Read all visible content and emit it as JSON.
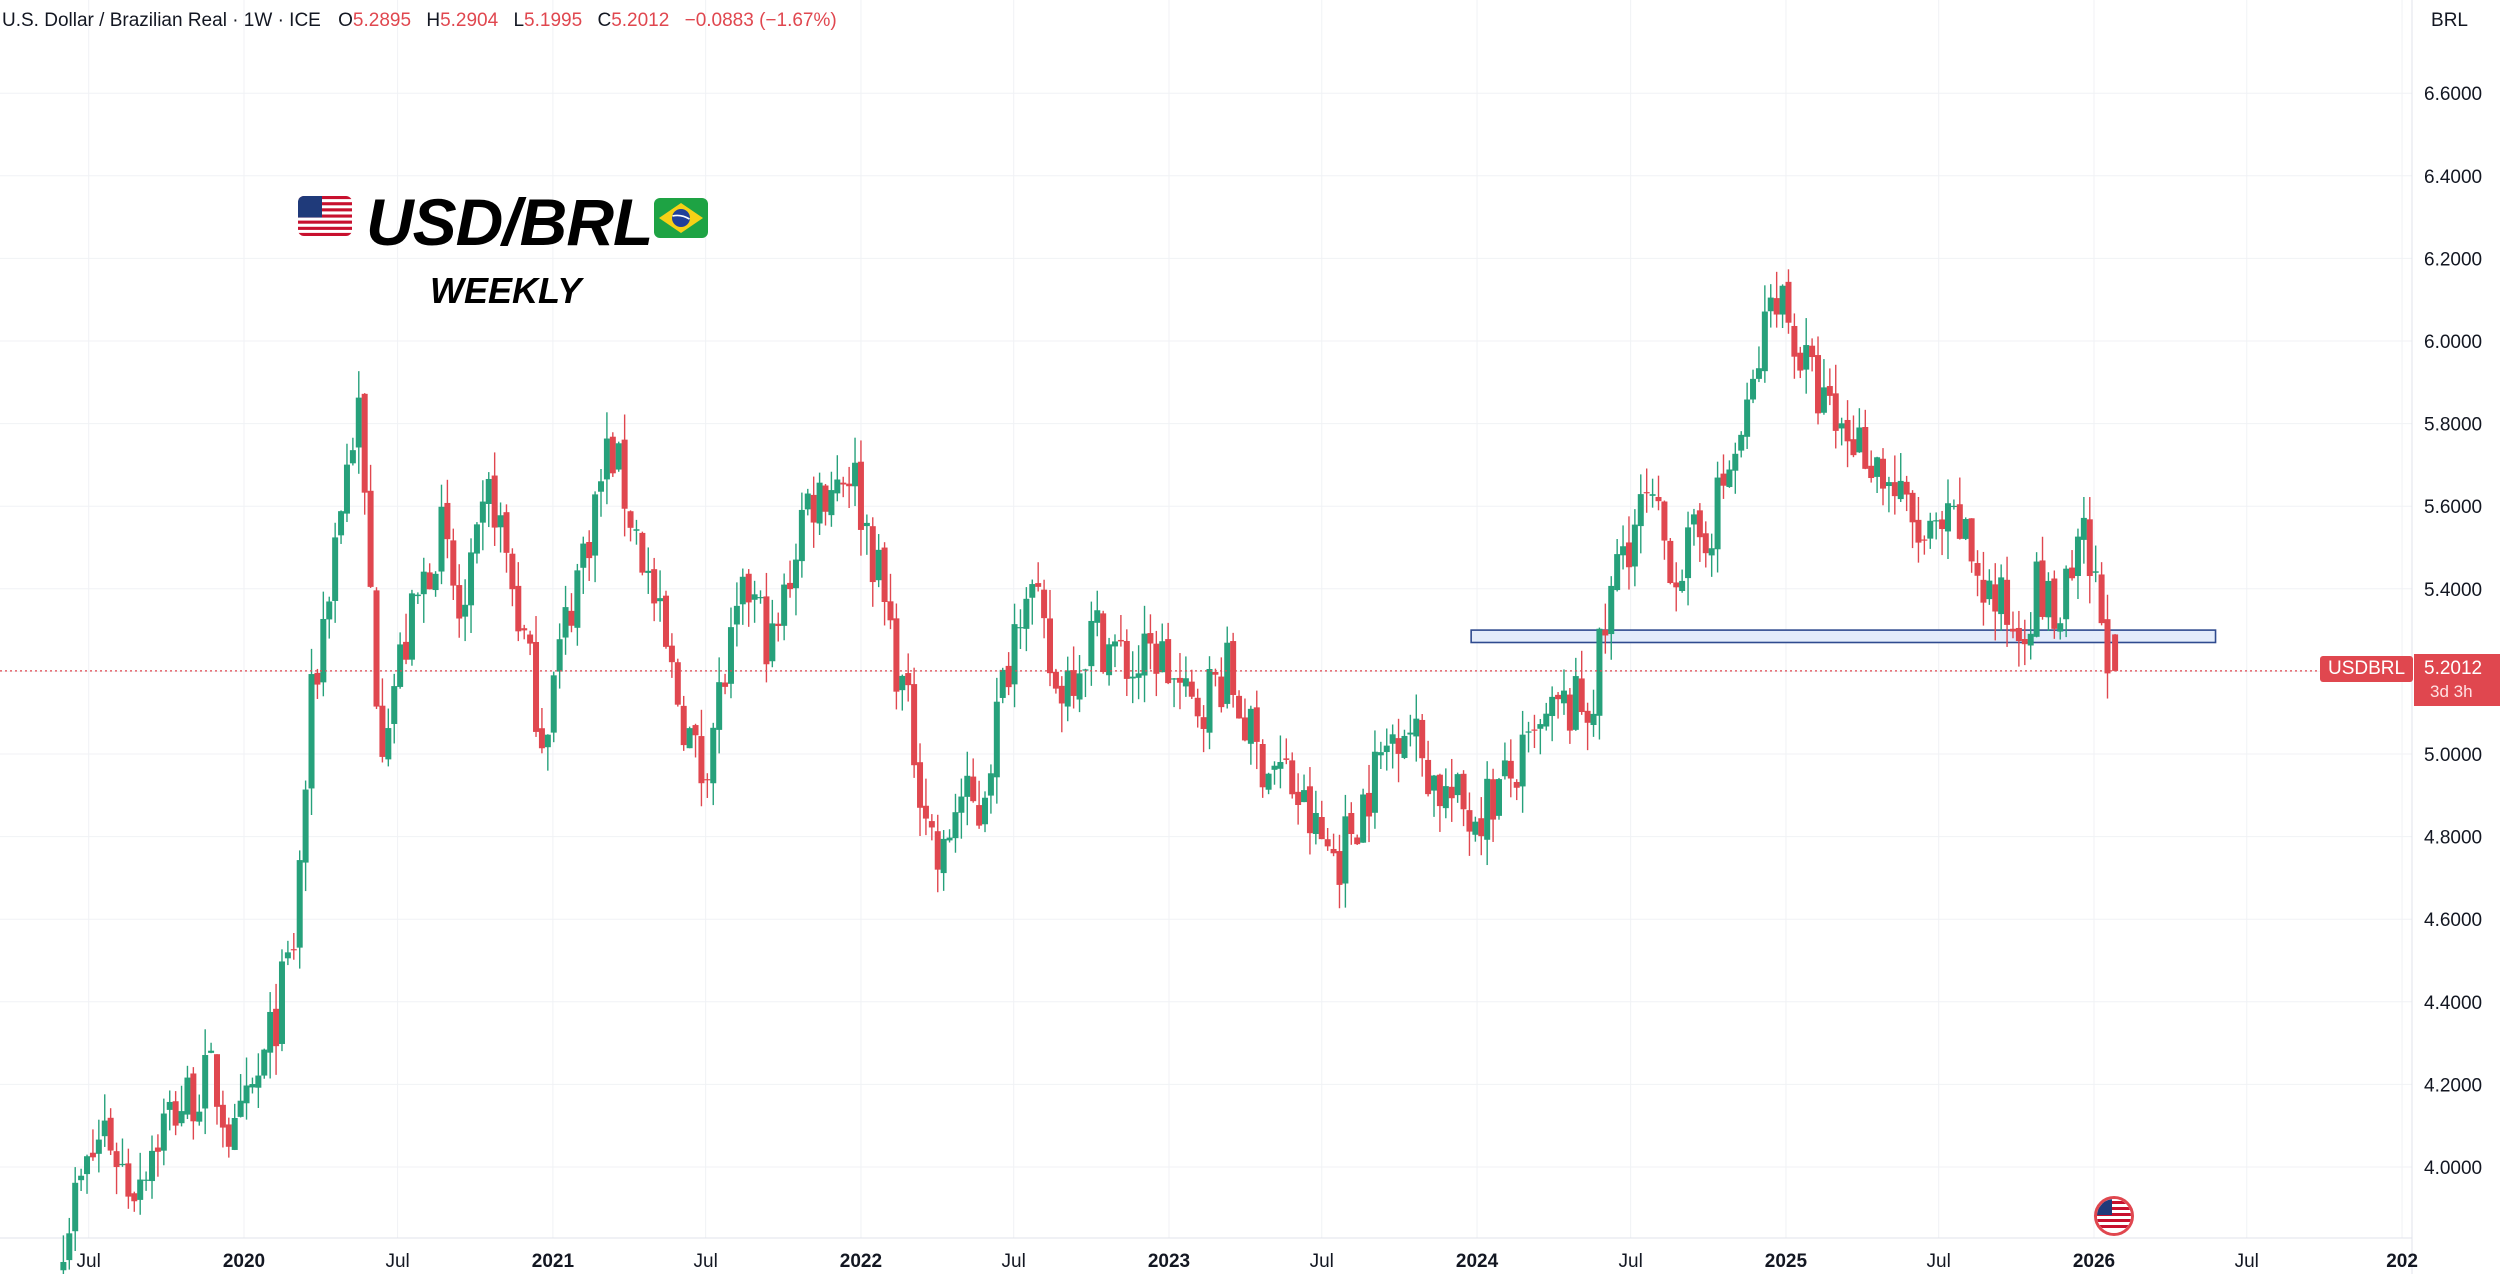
{
  "header": {
    "symbol_desc": "U.S. Dollar / Brazilian Real · 1W · ICE",
    "o_label": "O",
    "o_value": "5.2895",
    "h_label": "H",
    "h_value": "5.2904",
    "l_label": "L",
    "l_value": "5.1995",
    "c_label": "C",
    "c_value": "5.2012",
    "change": "−0.0883 (−1.67%)"
  },
  "currency_badge": "BRL",
  "overlay": {
    "title": "USD/BRL",
    "subtitle": "WEEKLY",
    "left_flag_icon": "us-flag-icon",
    "right_flag_icon": "brazil-flag-icon"
  },
  "last_price": {
    "symbol": "USDBRL",
    "price": "5.2012",
    "countdown": "3d 3h"
  },
  "colors": {
    "up": "#26a17b",
    "down": "#e0474f",
    "zone_fill": "#e3ecfb",
    "zone_stroke": "#2f4b8f",
    "grid": "#f0f2f5"
  },
  "chart_data": {
    "type": "candlestick",
    "timeframe": "1W",
    "x_range": [
      "2019-06",
      "2027-01"
    ],
    "ylim": [
      3.9,
      6.75
    ],
    "y_ticks": [
      "6.6000",
      "6.4000",
      "6.2000",
      "6.0000",
      "5.8000",
      "5.6000",
      "5.4000",
      "5.2000",
      "5.0000",
      "4.8000",
      "4.6000",
      "4.4000",
      "4.2000",
      "4.0000"
    ],
    "x_ticks": [
      {
        "label": "Jul",
        "date": "2019-07",
        "bold": false
      },
      {
        "label": "2020",
        "date": "2020-01",
        "bold": true
      },
      {
        "label": "Jul",
        "date": "2020-07",
        "bold": false
      },
      {
        "label": "2021",
        "date": "2021-01",
        "bold": true
      },
      {
        "label": "Jul",
        "date": "2021-07",
        "bold": false
      },
      {
        "label": "2022",
        "date": "2022-01",
        "bold": true
      },
      {
        "label": "Jul",
        "date": "2022-07",
        "bold": false
      },
      {
        "label": "2023",
        "date": "2023-01",
        "bold": true
      },
      {
        "label": "Jul",
        "date": "2023-07",
        "bold": false
      },
      {
        "label": "2024",
        "date": "2024-01",
        "bold": true
      },
      {
        "label": "Jul",
        "date": "2024-07",
        "bold": false
      },
      {
        "label": "2025",
        "date": "2025-01",
        "bold": true
      },
      {
        "label": "Jul",
        "date": "2025-07",
        "bold": false
      },
      {
        "label": "2026",
        "date": "2026-01",
        "bold": true
      },
      {
        "label": "Jul",
        "date": "2026-07",
        "bold": false
      },
      {
        "label": "202",
        "date": "2027-01",
        "bold": true
      }
    ],
    "anchors": [
      [
        "2019-06-01",
        3.85
      ],
      [
        "2019-07-20",
        4.1
      ],
      [
        "2019-08-20",
        3.95
      ],
      [
        "2019-10-01",
        4.12
      ],
      [
        "2019-11-25",
        4.22
      ],
      [
        "2019-12-20",
        4.05
      ],
      [
        "2020-01-25",
        4.25
      ],
      [
        "2020-03-01",
        4.55
      ],
      [
        "2020-03-20",
        5.1
      ],
      [
        "2020-04-20",
        5.55
      ],
      [
        "2020-05-15",
        5.85
      ],
      [
        "2020-06-10",
        5.05
      ],
      [
        "2020-07-15",
        5.3
      ],
      [
        "2020-08-20",
        5.55
      ],
      [
        "2020-09-15",
        5.3
      ],
      [
        "2020-10-20",
        5.65
      ],
      [
        "2020-11-15",
        5.4
      ],
      [
        "2020-12-20",
        5.05
      ],
      [
        "2021-01-20",
        5.35
      ],
      [
        "2021-03-10",
        5.75
      ],
      [
        "2021-04-15",
        5.5
      ],
      [
        "2021-05-20",
        5.2
      ],
      [
        "2021-06-25",
        4.95
      ],
      [
        "2021-07-25",
        5.2
      ],
      [
        "2021-08-20",
        5.4
      ],
      [
        "2021-09-20",
        5.25
      ],
      [
        "2021-10-25",
        5.6
      ],
      [
        "2021-12-20",
        5.7
      ],
      [
        "2022-01-20",
        5.45
      ],
      [
        "2022-02-25",
        5.1
      ],
      [
        "2022-04-05",
        4.7
      ],
      [
        "2022-04-25",
        4.9
      ],
      [
        "2022-05-20",
        4.85
      ],
      [
        "2022-07-15",
        5.45
      ],
      [
        "2022-08-20",
        5.15
      ],
      [
        "2022-10-05",
        5.3
      ],
      [
        "2022-11-20",
        5.2
      ],
      [
        "2022-12-20",
        5.25
      ],
      [
        "2023-01-25",
        5.1
      ],
      [
        "2023-03-10",
        5.2
      ],
      [
        "2023-04-15",
        5.0
      ],
      [
        "2023-05-20",
        4.95
      ],
      [
        "2023-06-25",
        4.8
      ],
      [
        "2023-07-20",
        4.75
      ],
      [
        "2023-09-01",
        4.95
      ],
      [
        "2023-10-05",
        5.1
      ],
      [
        "2023-11-15",
        4.92
      ],
      [
        "2023-12-25",
        4.85
      ],
      [
        "2024-02-15",
        4.95
      ],
      [
        "2024-04-05",
        5.1
      ],
      [
        "2024-05-15",
        5.12
      ],
      [
        "2024-06-20",
        5.5
      ],
      [
        "2024-07-20",
        5.6
      ],
      [
        "2024-08-25",
        5.45
      ],
      [
        "2024-10-01",
        5.55
      ],
      [
        "2024-11-15",
        5.8
      ],
      [
        "2024-12-20",
        6.15
      ],
      [
        "2025-01-20",
        5.95
      ],
      [
        "2025-02-25",
        5.8
      ],
      [
        "2025-04-05",
        5.75
      ],
      [
        "2025-05-05",
        5.65
      ],
      [
        "2025-06-15",
        5.5
      ],
      [
        "2025-07-25",
        5.55
      ],
      [
        "2025-08-25",
        5.4
      ],
      [
        "2025-10-01",
        5.3
      ],
      [
        "2025-10-25",
        5.4
      ],
      [
        "2025-11-20",
        5.32
      ],
      [
        "2025-12-20",
        5.5
      ],
      [
        "2026-01-15",
        5.29
      ],
      [
        "2026-01-26",
        5.2
      ]
    ],
    "last": {
      "o": 5.2895,
      "h": 5.2904,
      "l": 5.1995,
      "c": 5.2012
    },
    "support_zone": {
      "y_low": 5.27,
      "y_high": 5.3,
      "x_from": "2023-12-25",
      "x_to": "2026-05-25"
    },
    "current_price_line": 5.2012
  }
}
